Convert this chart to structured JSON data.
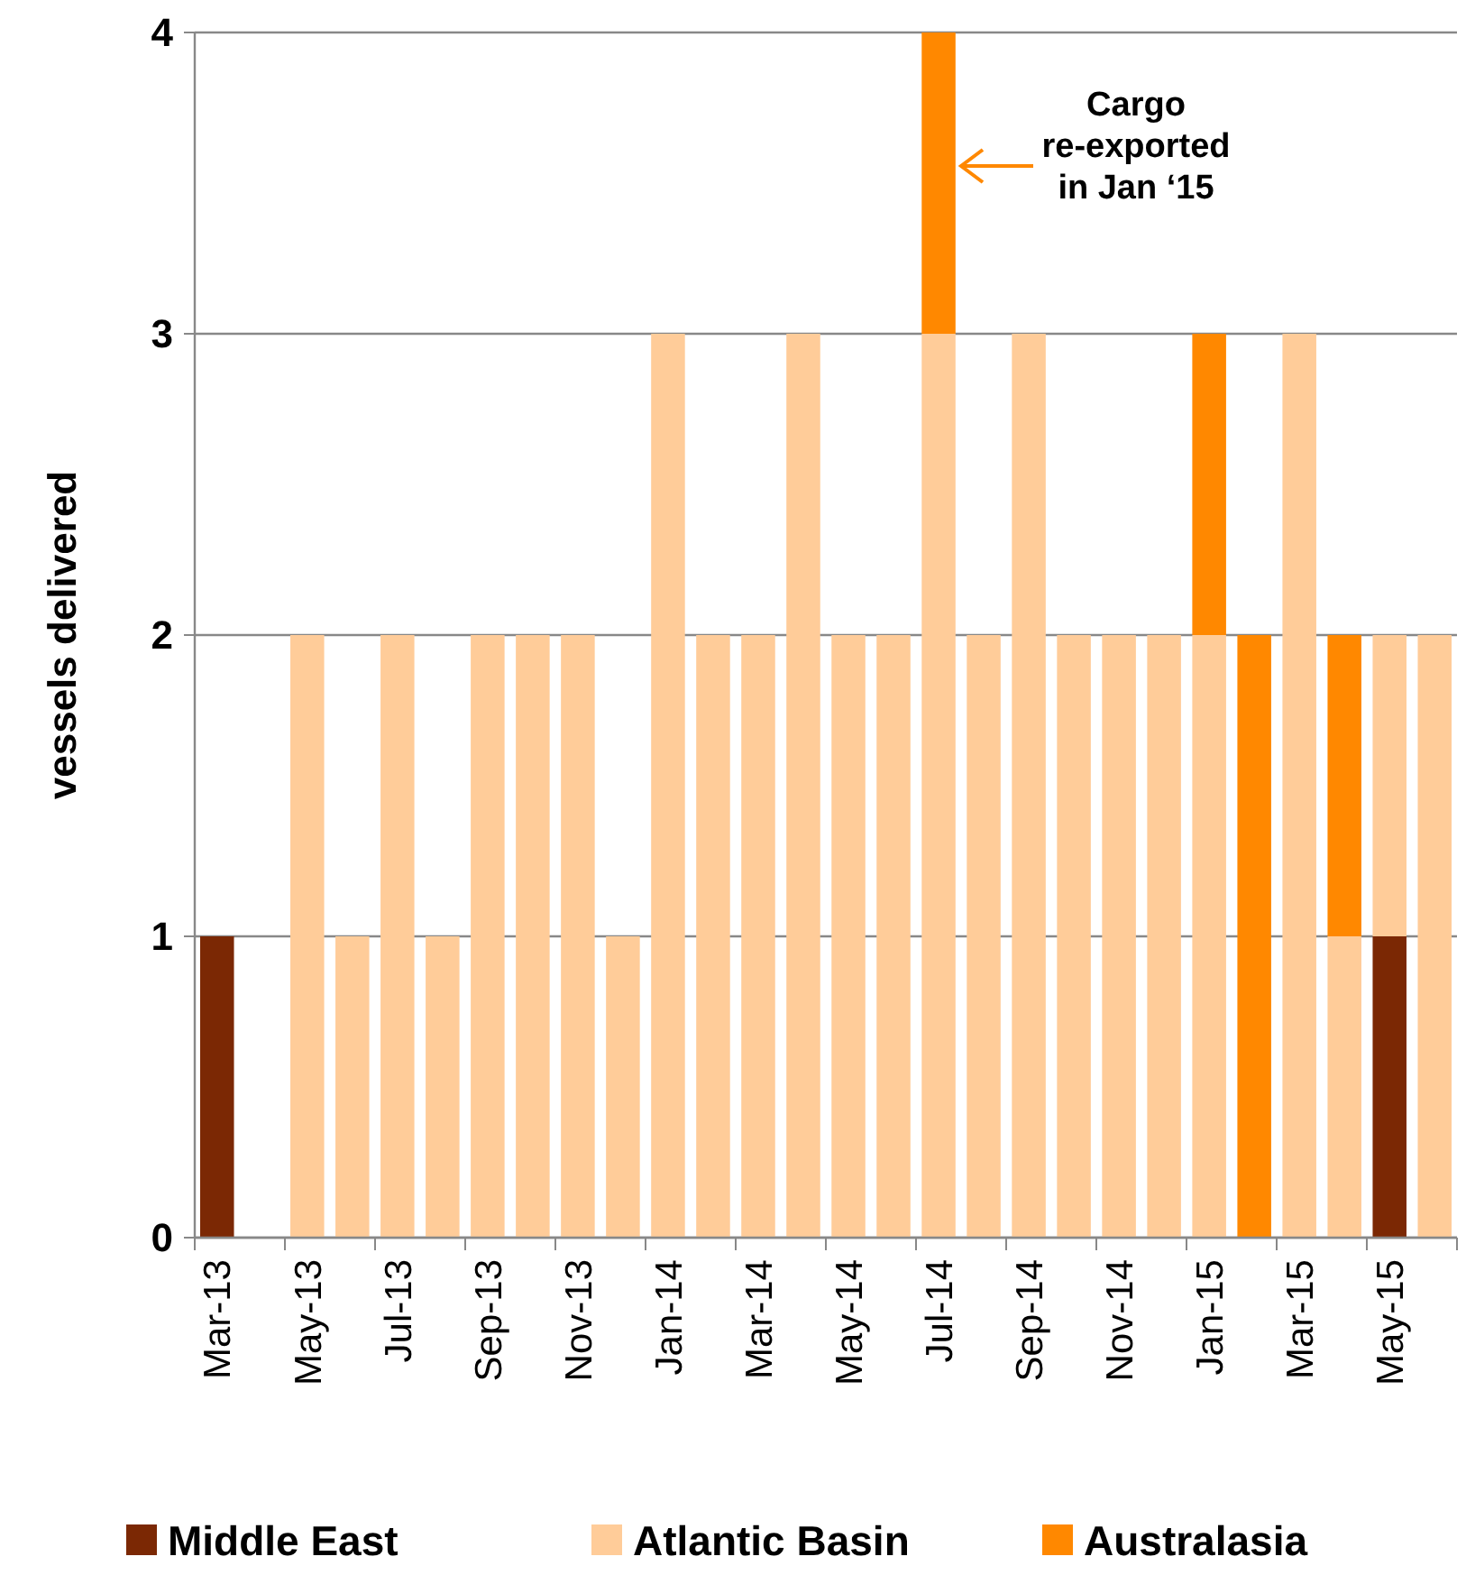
{
  "chart_data": {
    "type": "bar",
    "ylabel": "vessels delivered",
    "stacked": true,
    "categories": [
      "Mar-13",
      null,
      "May-13",
      null,
      "Jul-13",
      null,
      "Sep-13",
      null,
      "Nov-13",
      null,
      "Jan-14",
      null,
      "Mar-14",
      null,
      "May-14",
      null,
      "Jul-14",
      null,
      "Sep-14",
      null,
      "Nov-14",
      null,
      "Jan-15",
      null,
      "Mar-15",
      null,
      "May-15",
      null
    ],
    "series": [
      {
        "name": "Middle East",
        "color": "#7b2804",
        "values": [
          1,
          0,
          0,
          0,
          0,
          0,
          0,
          0,
          0,
          0,
          0,
          0,
          0,
          0,
          0,
          0,
          0,
          0,
          0,
          0,
          0,
          0,
          0,
          0,
          0,
          0,
          1,
          0
        ]
      },
      {
        "name": "Atlantic Basin",
        "color": "#ffcc99",
        "values": [
          0,
          0,
          2,
          1,
          2,
          1,
          2,
          2,
          2,
          1,
          3,
          2,
          2,
          3,
          2,
          2,
          3,
          2,
          3,
          2,
          2,
          2,
          2,
          0,
          3,
          1,
          1,
          2
        ]
      },
      {
        "name": "Australasia",
        "color": "#ff8800",
        "values": [
          0,
          0,
          0,
          0,
          0,
          0,
          0,
          0,
          0,
          0,
          0,
          0,
          0,
          0,
          0,
          0,
          1,
          0,
          0,
          0,
          0,
          0,
          1,
          2,
          0,
          1,
          0,
          0
        ]
      }
    ],
    "ylim": [
      0,
      4
    ],
    "yticks": [
      0,
      1,
      2,
      3,
      4
    ],
    "grid": "y",
    "legend": "bottom",
    "annotations": [
      "Cargo\nre-exported\nin Jan ‘15"
    ]
  }
}
